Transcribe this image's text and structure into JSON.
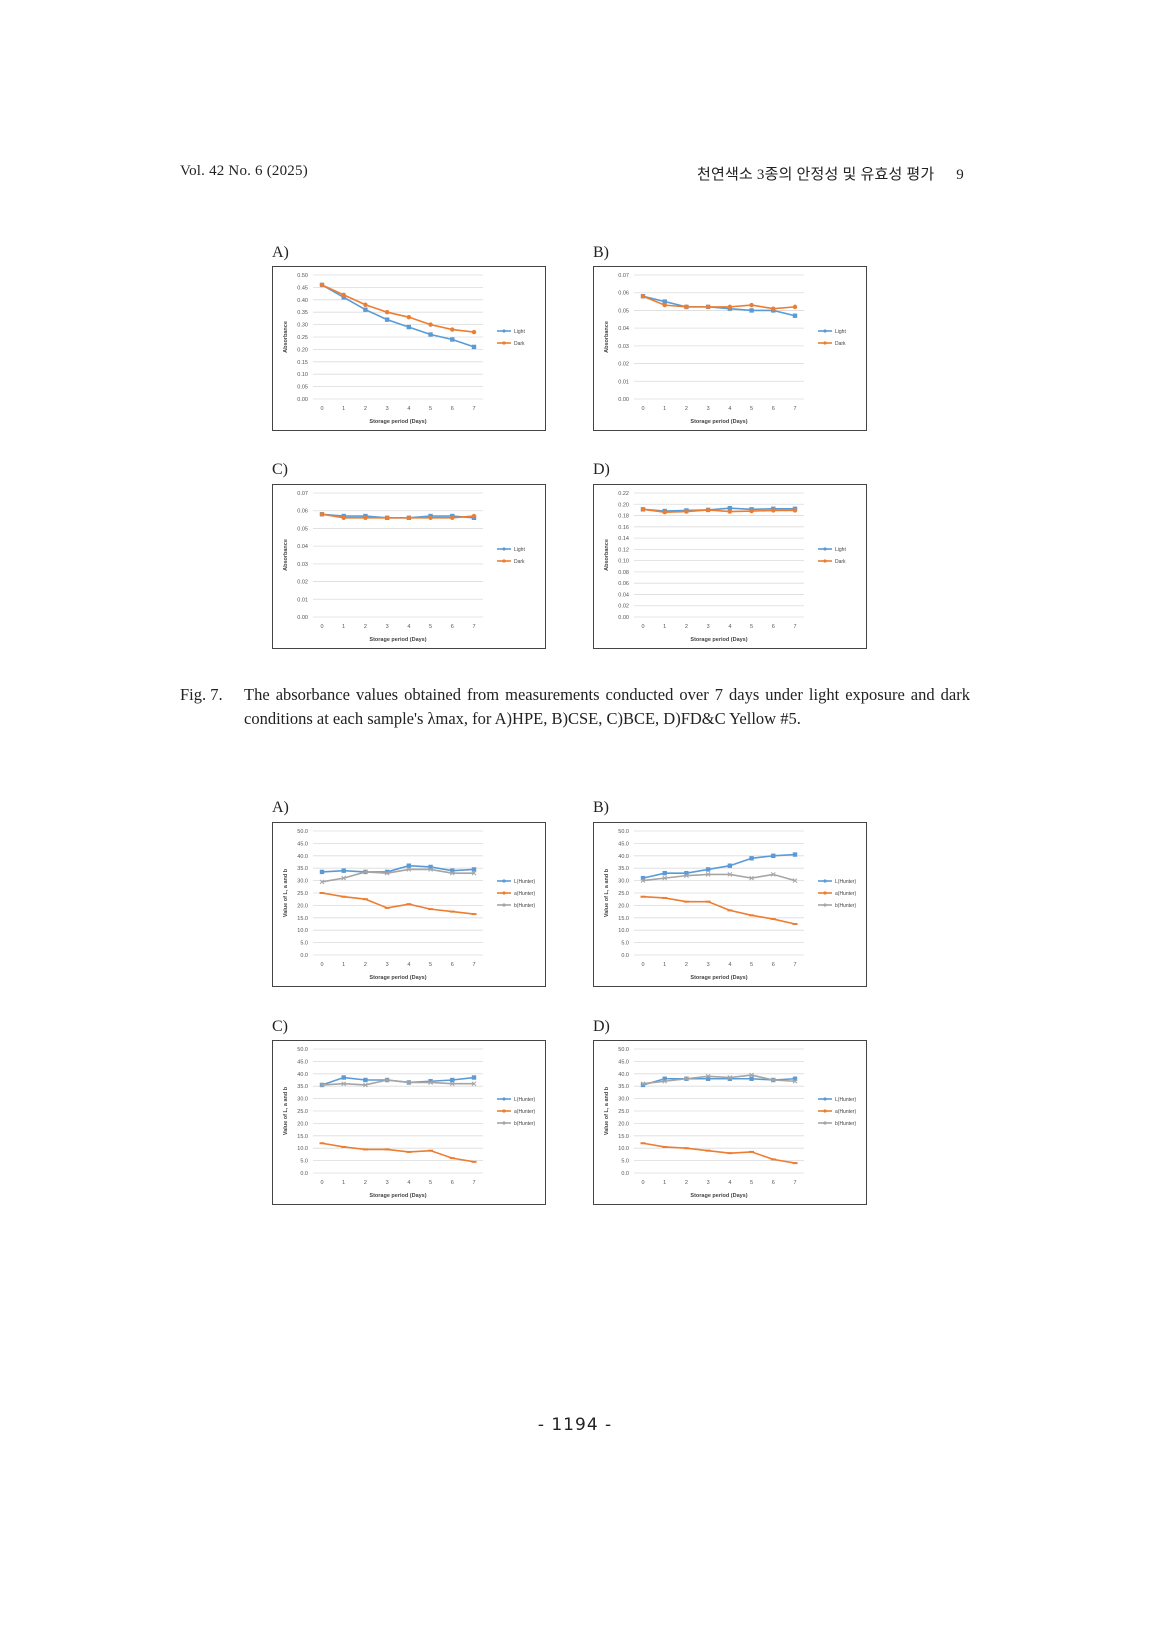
{
  "header": {
    "journal": "Vol. 42 No. 6 (2025)",
    "running_title": "천연색소 3종의 안정성 및 유효성 평가",
    "page": "9"
  },
  "figure7": {
    "caption_label": "Fig. 7.",
    "caption_text": "The absorbance values obtained from measurements conducted over 7 days under light exposure and dark conditions at each sample's λmax, for A)HPE, B)CSE, C)BCE, D)FD&C Yellow #5."
  },
  "page_number": "- 1194 -",
  "chart_data": [
    {
      "id": "fig7A",
      "panel_label": "A)",
      "type": "line",
      "title": "",
      "xlabel": "Storage period (Days)",
      "ylabel": "Absorbance",
      "x": [
        0,
        1,
        2,
        3,
        4,
        5,
        6,
        7
      ],
      "yticks": [
        "0.00",
        "0.05",
        "0.10",
        "0.15",
        "0.20",
        "0.25",
        "0.30",
        "0.35",
        "0.40",
        "0.45",
        "0.50"
      ],
      "ylim": [
        0,
        0.5
      ],
      "legend": "right",
      "series": [
        {
          "name": "Light",
          "color": "#5b9bd5",
          "marker": "square",
          "values": [
            0.46,
            0.41,
            0.36,
            0.32,
            0.29,
            0.26,
            0.24,
            0.21
          ]
        },
        {
          "name": "Dark",
          "color": "#ed7d31",
          "marker": "circle",
          "values": [
            0.46,
            0.42,
            0.38,
            0.35,
            0.33,
            0.3,
            0.28,
            0.27
          ]
        }
      ]
    },
    {
      "id": "fig7B",
      "panel_label": "B)",
      "type": "line",
      "title": "",
      "xlabel": "Storage period (Days)",
      "ylabel": "Absorbance",
      "x": [
        0,
        1,
        2,
        3,
        4,
        5,
        6,
        7
      ],
      "yticks": [
        "0.00",
        "0.01",
        "0.02",
        "0.03",
        "0.04",
        "0.05",
        "0.06",
        "0.07"
      ],
      "ylim": [
        0,
        0.07
      ],
      "legend": "right",
      "series": [
        {
          "name": "Light",
          "color": "#5b9bd5",
          "marker": "square",
          "values": [
            0.058,
            0.055,
            0.052,
            0.052,
            0.051,
            0.05,
            0.05,
            0.047
          ]
        },
        {
          "name": "Dark",
          "color": "#ed7d31",
          "marker": "circle",
          "values": [
            0.058,
            0.053,
            0.052,
            0.052,
            0.052,
            0.053,
            0.051,
            0.052
          ]
        }
      ]
    },
    {
      "id": "fig7C",
      "panel_label": "C)",
      "type": "line",
      "title": "",
      "xlabel": "Storage period (Days)",
      "ylabel": "Absorbance",
      "x": [
        0,
        1,
        2,
        3,
        4,
        5,
        6,
        7
      ],
      "yticks": [
        "0.00",
        "0.01",
        "0.02",
        "0.03",
        "0.04",
        "0.05",
        "0.06",
        "0.07"
      ],
      "ylim": [
        0,
        0.07
      ],
      "legend": "right",
      "series": [
        {
          "name": "Light",
          "color": "#5b9bd5",
          "marker": "square",
          "values": [
            0.058,
            0.057,
            0.057,
            0.056,
            0.056,
            0.057,
            0.057,
            0.056
          ]
        },
        {
          "name": "Dark",
          "color": "#ed7d31",
          "marker": "circle",
          "values": [
            0.058,
            0.056,
            0.056,
            0.056,
            0.056,
            0.056,
            0.056,
            0.057
          ]
        }
      ]
    },
    {
      "id": "fig7D",
      "panel_label": "D)",
      "type": "line",
      "title": "",
      "xlabel": "Storage period (Days)",
      "ylabel": "Absorbance",
      "x": [
        0,
        1,
        2,
        3,
        4,
        5,
        6,
        7
      ],
      "yticks": [
        "0.00",
        "0.02",
        "0.04",
        "0.06",
        "0.08",
        "0.10",
        "0.12",
        "0.14",
        "0.16",
        "0.18",
        "0.20",
        "0.22"
      ],
      "ylim": [
        0,
        0.22
      ],
      "legend": "right",
      "series": [
        {
          "name": "Light",
          "color": "#5b9bd5",
          "marker": "square",
          "values": [
            0.191,
            0.188,
            0.189,
            0.19,
            0.193,
            0.191,
            0.192,
            0.192
          ]
        },
        {
          "name": "Dark",
          "color": "#ed7d31",
          "marker": "circle",
          "values": [
            0.191,
            0.186,
            0.187,
            0.19,
            0.187,
            0.188,
            0.189,
            0.189
          ]
        }
      ]
    },
    {
      "id": "fig8A",
      "panel_label": "A)",
      "type": "line",
      "title": "",
      "xlabel": "Storage period (Days)",
      "ylabel": "Value of L, a and b",
      "x": [
        0,
        1,
        2,
        3,
        4,
        5,
        6,
        7
      ],
      "yticks": [
        "0.0",
        "5.0",
        "10.0",
        "15.0",
        "20.0",
        "25.0",
        "30.0",
        "35.0",
        "40.0",
        "45.0",
        "50.0"
      ],
      "ylim": [
        0,
        50
      ],
      "legend": "right",
      "series": [
        {
          "name": "L(Hunter)",
          "color": "#5b9bd5",
          "marker": "square",
          "values": [
            33.5,
            34.0,
            33.5,
            33.5,
            36.0,
            35.5,
            34.0,
            34.5
          ]
        },
        {
          "name": "a(Hunter)",
          "color": "#ed7d31",
          "marker": "dash",
          "values": [
            25.0,
            23.5,
            22.5,
            19.0,
            20.5,
            18.5,
            17.5,
            16.5
          ]
        },
        {
          "name": "b(Hunter)",
          "color": "#a5a5a5",
          "marker": "x",
          "values": [
            29.5,
            31.0,
            33.5,
            33.0,
            34.5,
            34.5,
            33.0,
            33.0
          ]
        }
      ]
    },
    {
      "id": "fig8B",
      "panel_label": "B)",
      "type": "line",
      "title": "",
      "xlabel": "Storage period (Days)",
      "ylabel": "Value of L, a and b",
      "x": [
        0,
        1,
        2,
        3,
        4,
        5,
        6,
        7
      ],
      "yticks": [
        "0.0",
        "5.0",
        "10.0",
        "15.0",
        "20.0",
        "25.0",
        "30.0",
        "35.0",
        "40.0",
        "45.0",
        "50.0"
      ],
      "ylim": [
        0,
        50
      ],
      "legend": "right",
      "series": [
        {
          "name": "L(Hunter)",
          "color": "#5b9bd5",
          "marker": "square",
          "values": [
            31.0,
            33.0,
            33.0,
            34.5,
            36.0,
            39.0,
            40.0,
            40.5
          ]
        },
        {
          "name": "a(Hunter)",
          "color": "#ed7d31",
          "marker": "dash",
          "values": [
            23.5,
            23.0,
            21.5,
            21.5,
            18.0,
            16.0,
            14.5,
            12.5
          ]
        },
        {
          "name": "b(Hunter)",
          "color": "#a5a5a5",
          "marker": "x",
          "values": [
            30.0,
            31.0,
            32.0,
            32.5,
            32.5,
            31.0,
            32.5,
            30.0
          ]
        }
      ]
    },
    {
      "id": "fig8C",
      "panel_label": "C)",
      "type": "line",
      "title": "",
      "xlabel": "Storage period (Days)",
      "ylabel": "Value of L, a and b",
      "x": [
        0,
        1,
        2,
        3,
        4,
        5,
        6,
        7
      ],
      "yticks": [
        "0.0",
        "5.0",
        "10.0",
        "15.0",
        "20.0",
        "25.0",
        "30.0",
        "35.0",
        "40.0",
        "45.0",
        "50.0"
      ],
      "ylim": [
        0,
        50
      ],
      "legend": "right",
      "series": [
        {
          "name": "L(Hunter)",
          "color": "#5b9bd5",
          "marker": "square",
          "values": [
            35.5,
            38.5,
            37.5,
            37.5,
            36.5,
            37.0,
            37.5,
            38.5
          ]
        },
        {
          "name": "a(Hunter)",
          "color": "#ed7d31",
          "marker": "dash",
          "values": [
            12.0,
            10.5,
            9.5,
            9.5,
            8.5,
            9.0,
            6.0,
            4.5
          ]
        },
        {
          "name": "b(Hunter)",
          "color": "#a5a5a5",
          "marker": "x",
          "values": [
            35.5,
            36.0,
            35.5,
            37.5,
            36.5,
            36.5,
            36.0,
            36.0
          ]
        }
      ]
    },
    {
      "id": "fig8D",
      "panel_label": "D)",
      "type": "line",
      "title": "",
      "xlabel": "Storage period (Days)",
      "ylabel": "Value of L, a and b",
      "x": [
        0,
        1,
        2,
        3,
        4,
        5,
        6,
        7
      ],
      "yticks": [
        "0.0",
        "5.0",
        "10.0",
        "15.0",
        "20.0",
        "25.0",
        "30.0",
        "35.0",
        "40.0",
        "45.0",
        "50.0"
      ],
      "ylim": [
        0,
        50
      ],
      "legend": "right",
      "series": [
        {
          "name": "L(Hunter)",
          "color": "#5b9bd5",
          "marker": "square",
          "values": [
            35.5,
            38.0,
            38.0,
            38.0,
            38.0,
            38.0,
            37.5,
            38.0
          ]
        },
        {
          "name": "a(Hunter)",
          "color": "#ed7d31",
          "marker": "dash",
          "values": [
            12.0,
            10.5,
            10.0,
            9.0,
            8.0,
            8.5,
            5.5,
            4.0
          ]
        },
        {
          "name": "b(Hunter)",
          "color": "#a5a5a5",
          "marker": "x",
          "values": [
            36.0,
            37.0,
            38.0,
            39.0,
            38.5,
            39.5,
            37.5,
            37.0
          ]
        }
      ]
    }
  ]
}
